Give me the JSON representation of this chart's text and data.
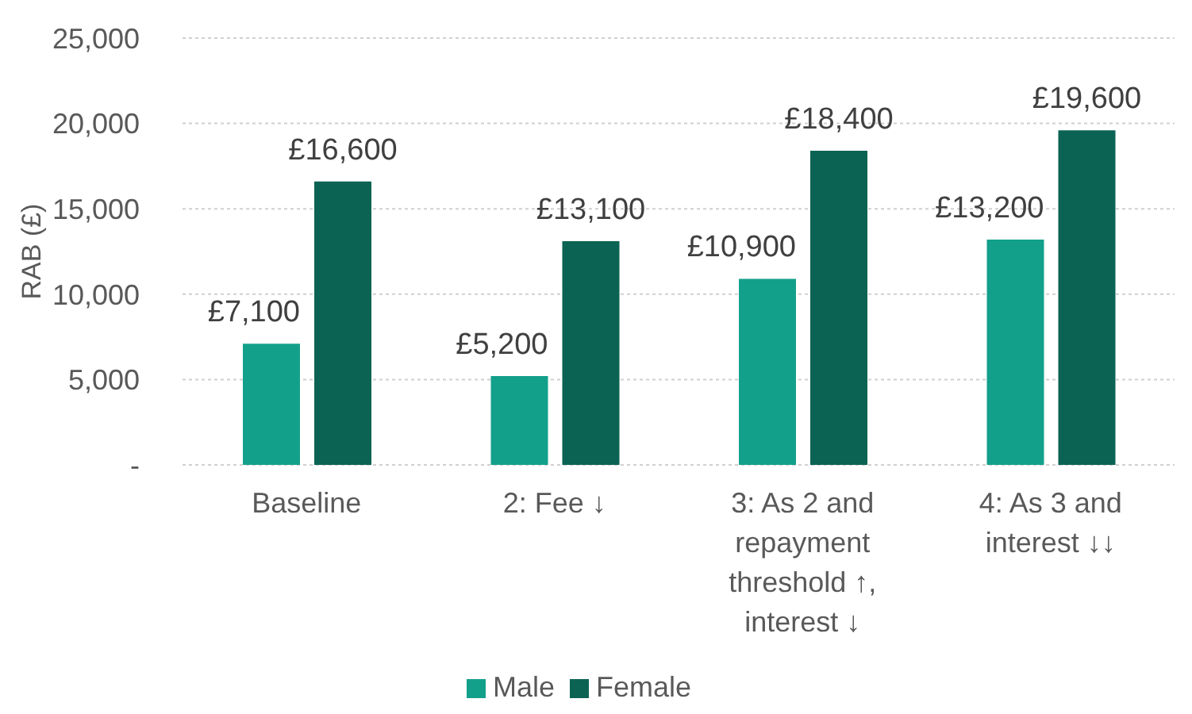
{
  "chart_data": {
    "type": "bar",
    "ylabel": "RAB (£)",
    "categories": [
      "Baseline",
      "2: Fee ↓",
      "3: As 2 and repayment threshold ↑, interest ↓",
      "4: As 3 and interest ↓↓"
    ],
    "series": [
      {
        "name": "Male",
        "color": "#13a08a",
        "values": [
          7100,
          5200,
          10900,
          13200
        ],
        "value_labels": [
          "£7,100",
          "£5,200",
          "£10,900",
          "£13,200"
        ]
      },
      {
        "name": "Female",
        "color": "#0b6354",
        "values": [
          16600,
          13100,
          18400,
          19600
        ],
        "value_labels": [
          "£16,600",
          "£13,100",
          "£18,400",
          "£19,600"
        ]
      }
    ],
    "ylim": [
      0,
      25000
    ],
    "yticks": [
      {
        "value": 0,
        "label": "-"
      },
      {
        "value": 5000,
        "label": "5,000"
      },
      {
        "value": 10000,
        "label": "10,000"
      },
      {
        "value": 15000,
        "label": "15,000"
      },
      {
        "value": 20000,
        "label": "20,000"
      },
      {
        "value": 25000,
        "label": "25,000"
      }
    ],
    "grid": "y",
    "legend": "bottom"
  }
}
